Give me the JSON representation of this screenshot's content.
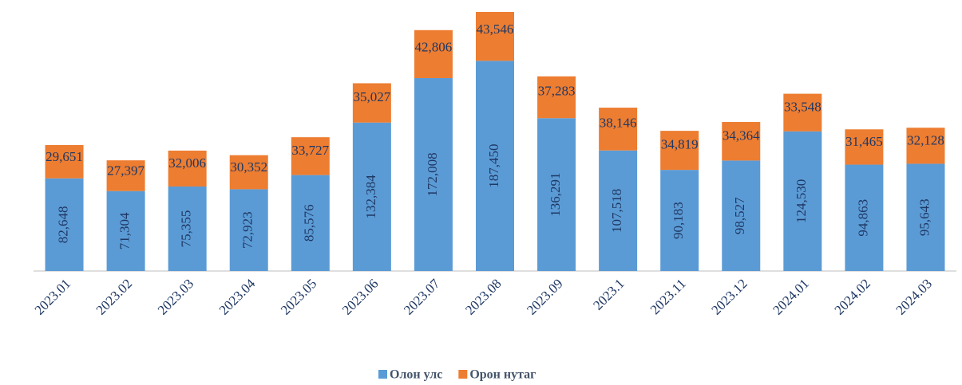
{
  "chart_data": {
    "type": "stacked_bar",
    "categories": [
      "2023.01",
      "2023.02",
      "2023.03",
      "2023.04",
      "2023.05",
      "2023.06",
      "2023.07",
      "2023.08",
      "2023.09",
      "2023.1",
      "2023.11",
      "2023.12",
      "2024.01",
      "2024.02",
      "2024.03"
    ],
    "series": [
      {
        "name": "Олон улс",
        "color": "#5b9bd5",
        "values": [
          82648,
          71304,
          75355,
          72923,
          85576,
          132384,
          172008,
          187450,
          136291,
          107518,
          90183,
          98527,
          124530,
          94863,
          95643
        ],
        "value_labels": [
          "82,648",
          "71,304",
          "75,355",
          "72,923",
          "85,576",
          "132,384",
          "172,008",
          "187,450",
          "136,291",
          "107,518",
          "90,183",
          "98,527",
          "124,530",
          "94,863",
          "95,643"
        ]
      },
      {
        "name": "Орон нутаг",
        "color": "#ed7d31",
        "values": [
          29651,
          27397,
          32006,
          30352,
          33727,
          35027,
          42806,
          43546,
          37283,
          38146,
          34819,
          34364,
          33548,
          31465,
          32128
        ],
        "value_labels": [
          "29,651",
          "27,397",
          "32,006",
          "30,352",
          "33,727",
          "35,027",
          "42,806",
          "43,546",
          "37,283",
          "38,146",
          "34,819",
          "34,364",
          "33,548",
          "31,465",
          "32,128"
        ]
      }
    ],
    "ylim": [
      0,
      231000
    ]
  }
}
